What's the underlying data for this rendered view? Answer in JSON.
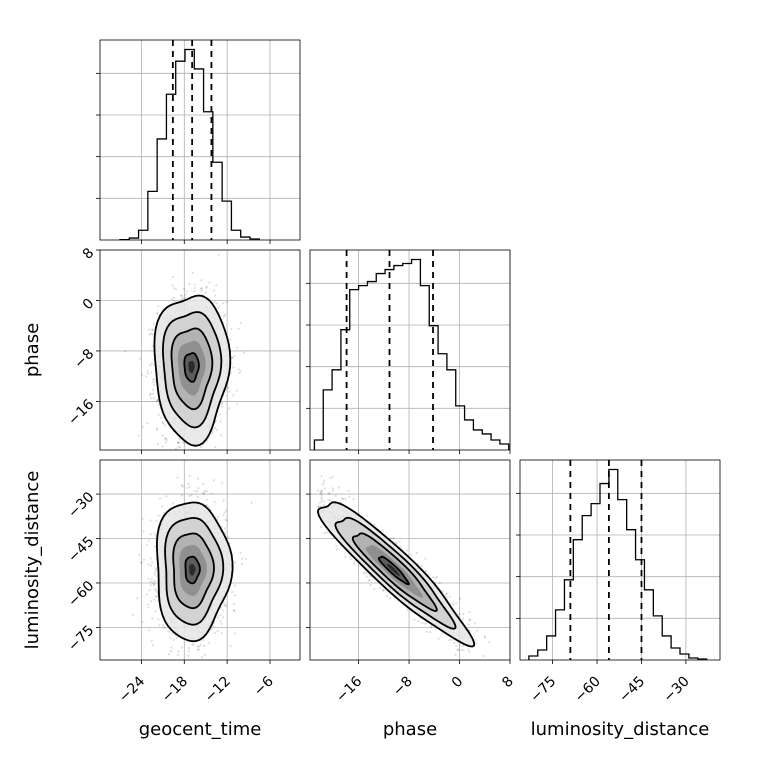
{
  "chart_data": {
    "type": "corner",
    "parameters": [
      "geocent_time",
      "phase",
      "luminosity_distance"
    ],
    "ticks": {
      "geocent_time": [
        -24,
        -18,
        -12,
        -6
      ],
      "phase": [
        -16,
        -8,
        0,
        8
      ],
      "luminosity_distance": [
        -75,
        -60,
        -45,
        -30
      ]
    },
    "ranges": {
      "geocent_time": [
        -29.8,
        -1.8
      ],
      "phase": [
        -23.7,
        8.0
      ],
      "luminosity_distance": [
        -86.0,
        -18.5
      ]
    },
    "grid": true,
    "histograms": {
      "geocent_time": {
        "edges": [
          -27.0,
          -25.7,
          -24.4,
          -23.1,
          -21.8,
          -20.5,
          -19.2,
          -17.9,
          -16.6,
          -15.3,
          -14.0,
          -12.7,
          -11.4,
          -10.1,
          -8.8,
          -7.5
        ],
        "counts": [
          0.2,
          1.0,
          5.0,
          25.0,
          52.0,
          75.0,
          92.0,
          98.0,
          88.0,
          66.0,
          40.0,
          20.0,
          5.0,
          1.5,
          0.5
        ],
        "quantiles": [
          -19.6,
          -16.9,
          -14.2
        ]
      },
      "phase": {
        "edges": [
          -23.0,
          -21.6,
          -20.2,
          -18.8,
          -17.4,
          -16.0,
          -14.6,
          -13.2,
          -11.8,
          -10.4,
          -9.0,
          -7.6,
          -6.2,
          -4.8,
          -3.4,
          -2.0,
          -0.6,
          0.8,
          2.2,
          3.6,
          5.0,
          6.4,
          7.8
        ],
        "counts": [
          5,
          30,
          40,
          60,
          80,
          82,
          84,
          88,
          90,
          92,
          93,
          95,
          82,
          62,
          48,
          40,
          22,
          15,
          10,
          8,
          5,
          3
        ],
        "quantiles": [
          -17.9,
          -11.1,
          -4.2
        ]
      },
      "luminosity_distance": {
        "edges": [
          -83.0,
          -80.0,
          -77.0,
          -74.0,
          -71.0,
          -68.0,
          -65.0,
          -62.0,
          -59.0,
          -56.0,
          -53.0,
          -50.0,
          -47.0,
          -44.0,
          -41.0,
          -38.0,
          -35.0,
          -32.0,
          -29.0,
          -26.0,
          -23.0
        ],
        "counts": [
          2,
          5,
          12,
          25,
          40,
          60,
          72,
          78,
          88,
          95,
          80,
          65,
          50,
          35,
          22,
          12,
          6,
          3,
          1,
          0.5
        ],
        "quantiles": [
          -69.0,
          -56.0,
          -45.0
        ]
      }
    },
    "scatter_2d": [
      {
        "x": "geocent_time",
        "y": "phase",
        "center": [
          -17.0,
          -10.5
        ],
        "sigma": [
          2.0,
          4.5
        ],
        "corr": 0.0
      },
      {
        "x": "geocent_time",
        "y": "luminosity_distance",
        "center": [
          -16.9,
          -55.5
        ],
        "sigma": [
          2.0,
          9.0
        ],
        "corr": 0.0
      },
      {
        "x": "phase",
        "y": "luminosity_distance",
        "center": [
          -10.5,
          -55.5
        ],
        "sigma": [
          4.5,
          9.0
        ],
        "corr": -0.93
      }
    ]
  }
}
